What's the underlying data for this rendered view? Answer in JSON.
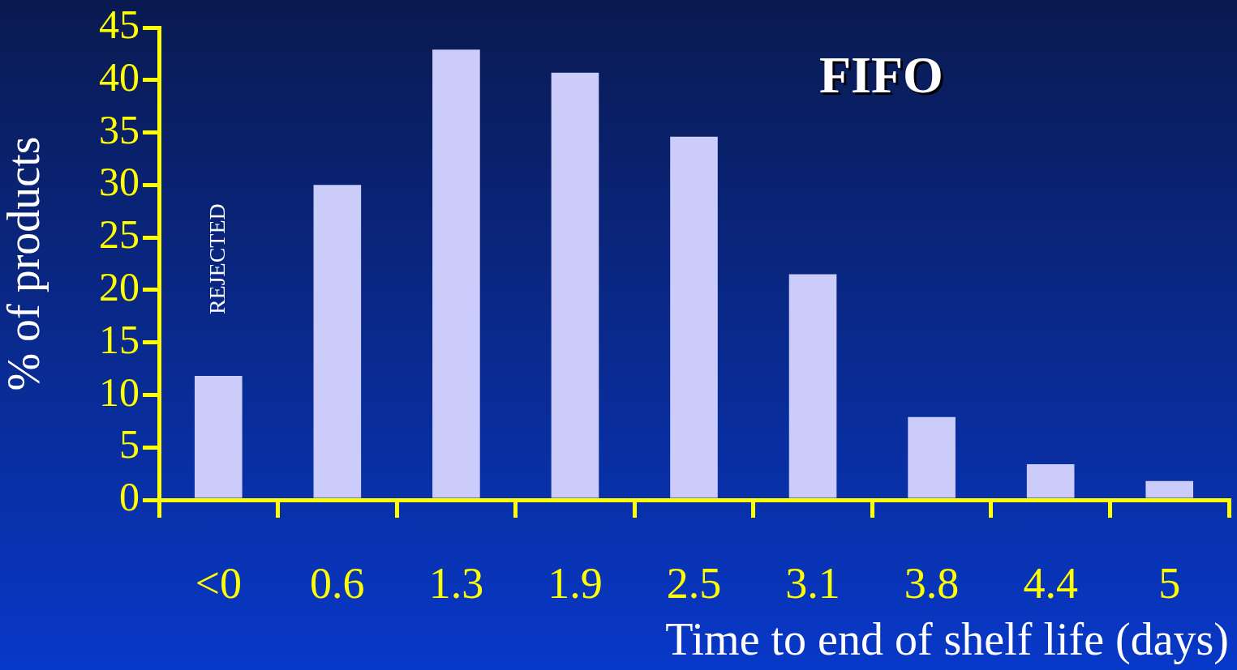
{
  "chart_data": {
    "type": "bar",
    "title": "FIFO",
    "xlabel": "Time to end of shelf life (days)",
    "ylabel": "% of products",
    "categories": [
      "<0",
      "0.6",
      "1.3",
      "1.9",
      "2.5",
      "3.1",
      "3.8",
      "4.4",
      "5"
    ],
    "values": [
      11.8,
      30,
      42.9,
      40.7,
      34.6,
      21.5,
      7.9,
      3.4,
      1.8
    ],
    "color": "#ccccfa",
    "ylim": [
      0,
      45
    ],
    "yticks": [
      0,
      5,
      10,
      15,
      20,
      25,
      30,
      35,
      40,
      45
    ],
    "grid": false,
    "legend": false,
    "annotations": [
      "REJECTED"
    ]
  }
}
